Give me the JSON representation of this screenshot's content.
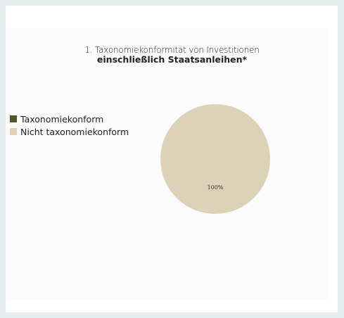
{
  "chart_data": {
    "type": "pie",
    "title_line1": "1. Taxonomiekonformität von Investitionen",
    "title_line2": "einschließlich Staatsanleihen*",
    "categories": [
      "Taxonomiekonform",
      "Nicht taxonomiekonform"
    ],
    "values": [
      0,
      100
    ],
    "data_labels": [
      "",
      "100%"
    ],
    "colors": [
      "#4b5a24",
      "#dcd2b8"
    ],
    "legend_position": "left"
  }
}
